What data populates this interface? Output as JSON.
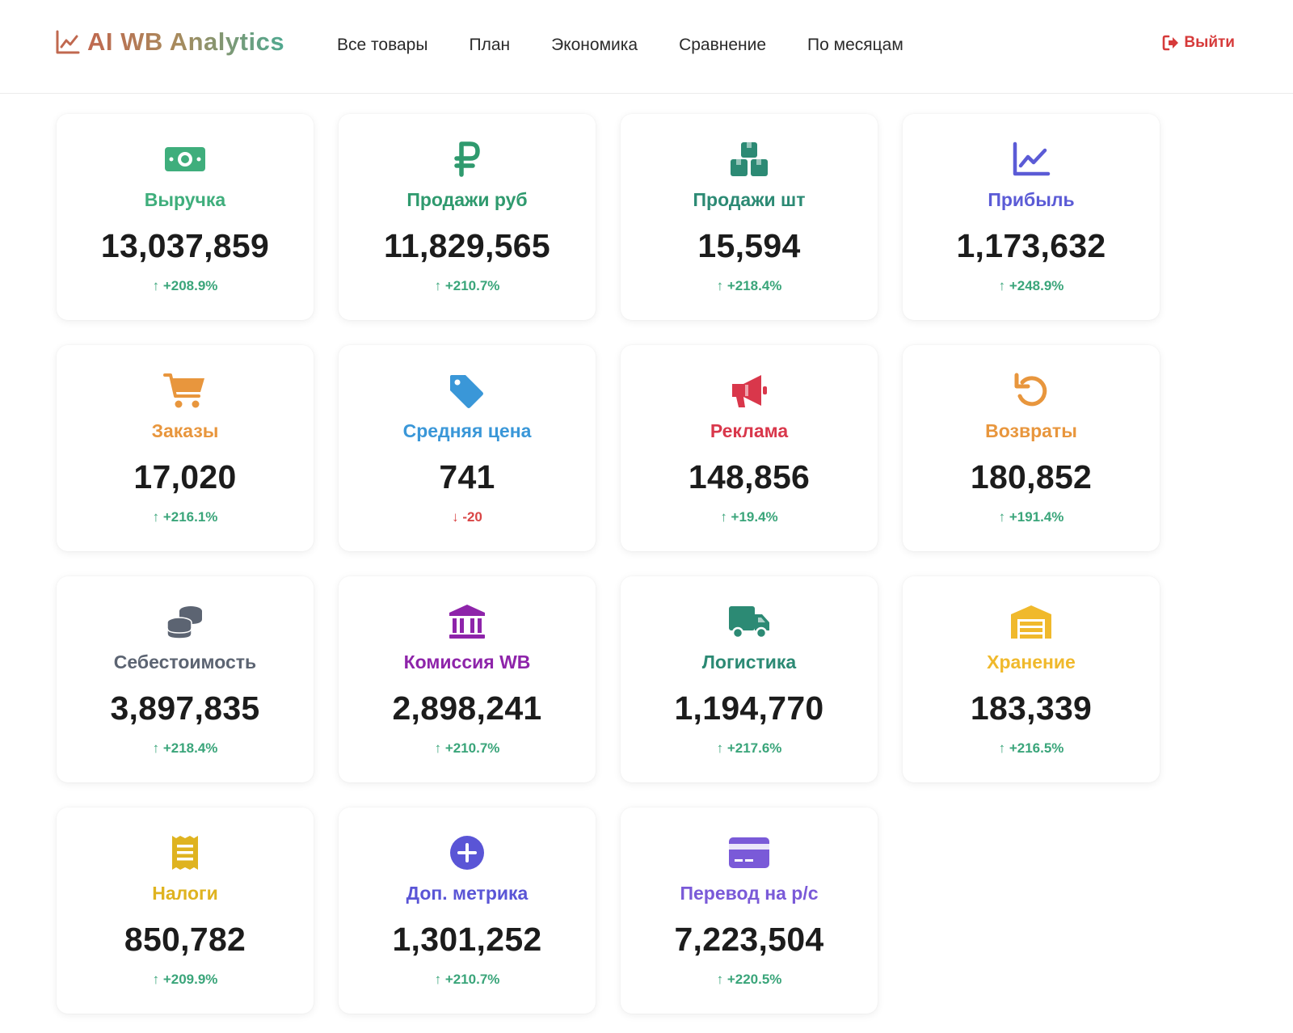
{
  "nav": {
    "brand": "AI WB Analytics",
    "links": [
      "Все товары",
      "План",
      "Экономика",
      "Сравнение",
      "По месяцам"
    ],
    "logout": "Выйти"
  },
  "cards": [
    {
      "title": "Выручка",
      "value": "13,037,859",
      "delta": "↑ +208.9%",
      "direction": "up",
      "color": "#3fae7c",
      "icon": "money-bill-icon"
    },
    {
      "title": "Продажи руб",
      "value": "11,829,565",
      "delta": "↑ +210.7%",
      "direction": "up",
      "color": "#2f9a6e",
      "icon": "ruble-icon"
    },
    {
      "title": "Продажи шт",
      "value": "15,594",
      "delta": "↑ +218.4%",
      "direction": "up",
      "color": "#2c8a74",
      "icon": "boxes-icon"
    },
    {
      "title": "Прибыль",
      "value": "1,173,632",
      "delta": "↑ +248.9%",
      "direction": "up",
      "color": "#5b5bd6",
      "icon": "chart-line-icon"
    },
    {
      "title": "Заказы",
      "value": "17,020",
      "delta": "↑ +216.1%",
      "direction": "up",
      "color": "#e8963d",
      "icon": "cart-icon"
    },
    {
      "title": "Средняя цена",
      "value": "741",
      "delta": "↓ -20",
      "direction": "down",
      "color": "#3a97d8",
      "icon": "tag-icon"
    },
    {
      "title": "Реклама",
      "value": "148,856",
      "delta": "↑ +19.4%",
      "direction": "up",
      "color": "#d9374b",
      "icon": "megaphone-icon"
    },
    {
      "title": "Возвраты",
      "value": "180,852",
      "delta": "↑ +191.4%",
      "direction": "up",
      "color": "#e8963d",
      "icon": "undo-icon"
    },
    {
      "title": "Себестоимость",
      "value": "3,897,835",
      "delta": "↑ +218.4%",
      "direction": "up",
      "color": "#5c6472",
      "icon": "coins-icon"
    },
    {
      "title": "Комиссия WB",
      "value": "2,898,241",
      "delta": "↑ +210.7%",
      "direction": "up",
      "color": "#8e24aa",
      "icon": "bank-icon"
    },
    {
      "title": "Логистика",
      "value": "1,194,770",
      "delta": "↑ +217.6%",
      "direction": "up",
      "color": "#2c8a74",
      "icon": "truck-icon"
    },
    {
      "title": "Хранение",
      "value": "183,339",
      "delta": "↑ +216.5%",
      "direction": "up",
      "color": "#f0b92c",
      "icon": "warehouse-icon"
    },
    {
      "title": "Налоги",
      "value": "850,782",
      "delta": "↑ +209.9%",
      "direction": "up",
      "color": "#dfb320",
      "icon": "receipt-icon"
    },
    {
      "title": "Доп. метрика",
      "value": "1,301,252",
      "delta": "↑ +210.7%",
      "direction": "up",
      "color": "#5a55d6",
      "icon": "plus-circle-icon"
    },
    {
      "title": "Перевод на р/с",
      "value": "7,223,504",
      "delta": "↑ +220.5%",
      "direction": "up",
      "color": "#7a5ad8",
      "icon": "credit-card-icon"
    }
  ]
}
